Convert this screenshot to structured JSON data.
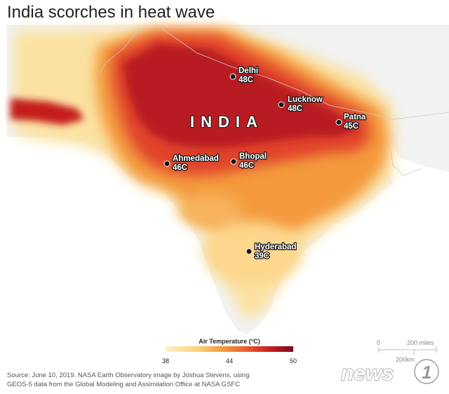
{
  "title": "India scorches in heat wave",
  "country_label": "INDIA",
  "cities": [
    {
      "name": "Delhi",
      "temp": "48C"
    },
    {
      "name": "Lucknow",
      "temp": "48C"
    },
    {
      "name": "Patna",
      "temp": "45C"
    },
    {
      "name": "Ahmedabad",
      "temp": "46C"
    },
    {
      "name": "Bhopal",
      "temp": "46C"
    },
    {
      "name": "Hyderabad",
      "temp": "39C"
    }
  ],
  "legend": {
    "title": "Air Temperature (°C)",
    "ticks": [
      "38",
      "44",
      "50"
    ],
    "colors": [
      "#fdf3c8",
      "#fbd07a",
      "#f49a3c",
      "#e8562a",
      "#c41f1f",
      "#7a0a25"
    ]
  },
  "scale": {
    "zero": "0",
    "miles": "200 miles",
    "km": "200km"
  },
  "source": {
    "line1": "Source: June 10, 2019. NASA Earth Observatory image by Joshua Stevens, using",
    "line2": "GEOS-5 data from the Global Modeling and Assimilation Office at NASA GSFC"
  },
  "watermark": "news1",
  "colors": {
    "hot": "#a5121f",
    "warm": "#e8562a",
    "mild": "#f9c46b",
    "land": "#f2f2f2",
    "sea": "#ffffff"
  }
}
